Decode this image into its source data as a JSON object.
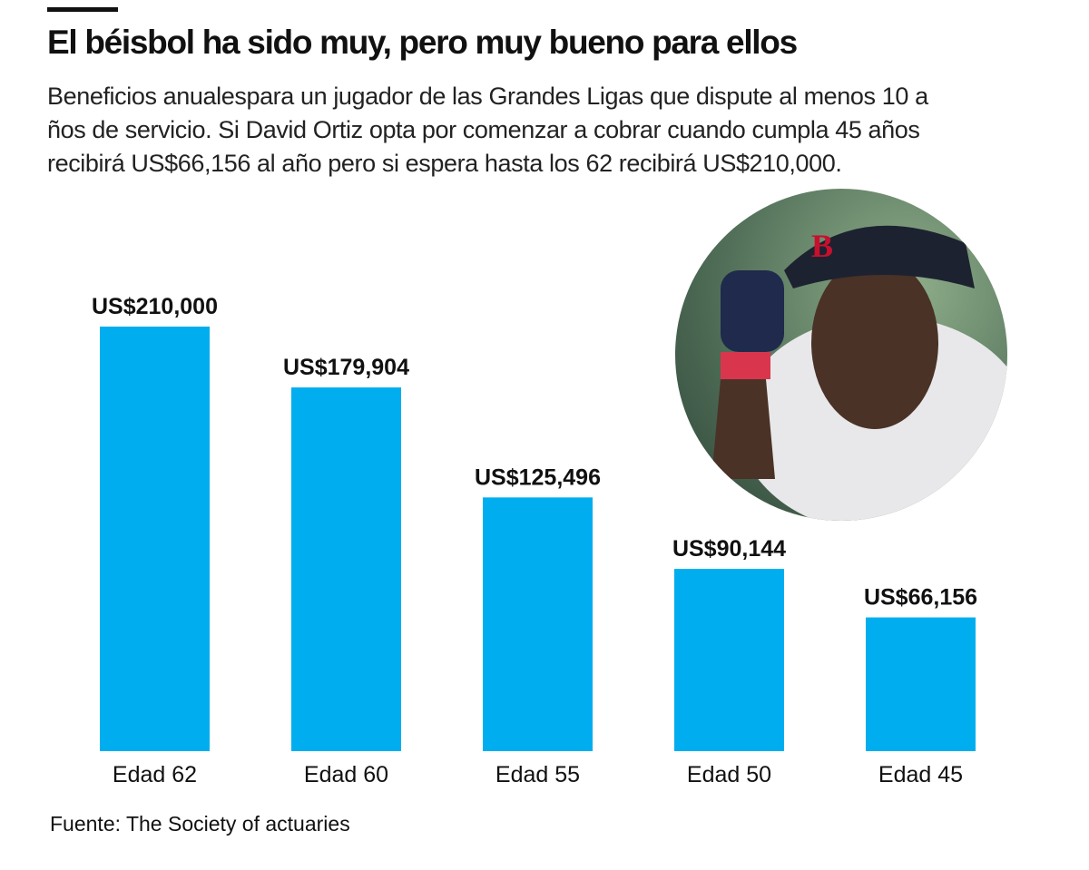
{
  "title": "El béisbol ha sido muy, pero muy bueno para ellos",
  "subtitle_lines": [
    "Beneficios anualespara un jugador de las Grandes Ligas que dispute al menos 10 a",
    "ños de servicio. Si David Ortiz opta por comenzar a cobrar cuando cumpla 45 años",
    "recibirá US$66,156 al año pero si espera hasta los 62 recibirá US$210,000."
  ],
  "source": "Fuente: The Society of actuaries",
  "colors": {
    "bar": "#00AEEF",
    "text": "#111111"
  },
  "photo": "circular photo of David Ortiz in Red Sox cap",
  "chart_data": {
    "type": "bar",
    "categories": [
      "Edad 62",
      "Edad 60",
      "Edad 55",
      "Edad 50",
      "Edad 45"
    ],
    "values": [
      210000,
      179904,
      125496,
      90144,
      66156
    ],
    "data_labels": [
      "US$210,000",
      "US$179,904",
      "US$125,496",
      "US$90,144",
      "US$66,156"
    ],
    "ylim": [
      0,
      210000
    ],
    "grid": false
  }
}
